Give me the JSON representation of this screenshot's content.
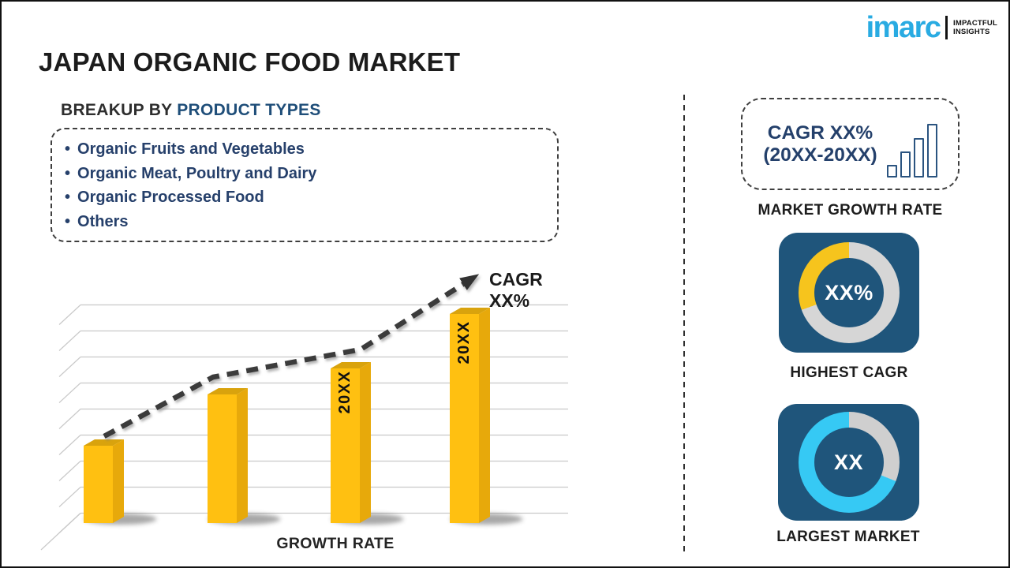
{
  "logo": {
    "brand": "imarc",
    "tagline": [
      "IMPACTFUL",
      "INSIGHTS"
    ],
    "brand_color": "#29ABE2"
  },
  "title": "JAPAN ORGANIC FOOD MARKET",
  "breakup": {
    "prefix": "BREAKUP BY",
    "highlight": "PRODUCT TYPES",
    "items": [
      "Organic Fruits and Vegetables",
      "Organic Meat, Poultry and Dairy",
      "Organic Processed Food",
      "Others"
    ]
  },
  "chart_data": {
    "type": "bar",
    "title": "",
    "xlabel": "GROWTH RATE",
    "ylabel": "",
    "categories": [
      "",
      "",
      "20XX",
      "20XX"
    ],
    "values": [
      98,
      163,
      196,
      265
    ],
    "value_unit": "relative height (no axis scale shown)",
    "bar_color": "#FFC011",
    "bar_side_color": "#E7A90B",
    "bar_top_color": "#D9A30D",
    "gridlines": true,
    "trend_label": "CAGR XX%",
    "trend_style": "dashed arrow rising left-to-right"
  },
  "right_panel": {
    "growth_box": {
      "line1": "CAGR XX%",
      "line2": "(20XX-20XX)"
    },
    "growth_caption": "MARKET GROWTH RATE",
    "tile_color": "#1F557B",
    "highest_cagr": {
      "value": "XX%",
      "caption": "HIGHEST CAGR",
      "arc_color": "#F6C41D",
      "track_color": "#D6D6D6",
      "arc_start_deg": 250,
      "arc_end_deg": 360
    },
    "largest_market": {
      "value": "XX",
      "caption": "LARGEST MARKET",
      "arc_color": "#36C9F4",
      "track_color": "#CFCFCF",
      "arc_start_deg": 112,
      "arc_end_deg": 360
    }
  }
}
